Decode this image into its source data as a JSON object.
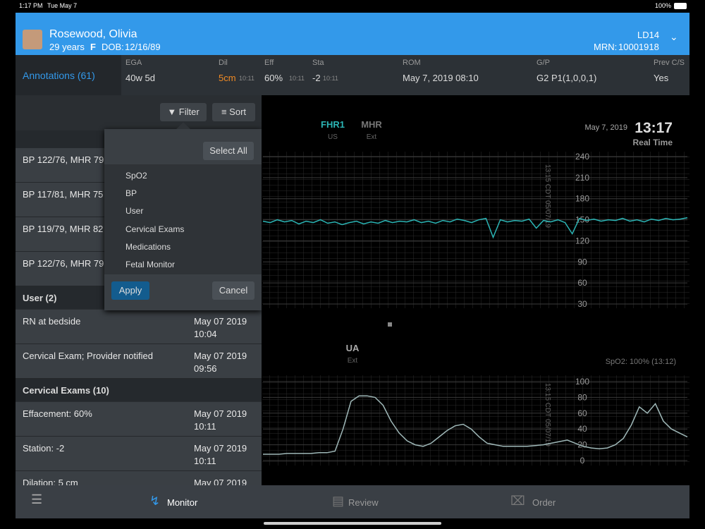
{
  "status": {
    "time": "1:17 PM",
    "date": "Tue May 7",
    "battery": "100%"
  },
  "patient": {
    "name": "Rosewood, Olivia",
    "age": "29 years",
    "sex": "F",
    "dob_label": "DOB:",
    "dob": "12/16/89",
    "room": "LD14",
    "mrn_label": "MRN:",
    "mrn": "10001918"
  },
  "annotations": "Annotations (61)",
  "summary": [
    {
      "label": "EGA",
      "value": "40w 5d"
    },
    {
      "label": "Dil",
      "value": "5cm",
      "time": "10:11"
    },
    {
      "label": "Eff",
      "value": "60%",
      "time": "10:11"
    },
    {
      "label": "Sta",
      "value": "-2",
      "time": "10:11"
    },
    {
      "label": "ROM",
      "value": "May 7, 2019 08:10"
    },
    {
      "label": "G/P",
      "value": "G2 P1(1,0,0,1)"
    },
    {
      "label": "Prev C/S",
      "value": "Yes"
    }
  ],
  "toolbar": {
    "filter": "Filter",
    "sort": "Sort"
  },
  "list": [
    {
      "text": "BP 122/76, MHR 79"
    },
    {
      "text": "BP 117/81, MHR 75"
    },
    {
      "text": "BP 119/79, MHR 82"
    },
    {
      "text": "BP 122/76, MHR 79"
    },
    {
      "header": "User (2)"
    },
    {
      "text": "RN at bedside",
      "date": "May 07 2019",
      "time": "10:04"
    },
    {
      "text": "Cervical Exam; Provider notified",
      "date": "May 07 2019",
      "time": "09:56"
    },
    {
      "header": "Cervical Exams (10)"
    },
    {
      "text": "Effacement: 60%",
      "date": "May 07 2019",
      "time": "10:11"
    },
    {
      "text": "Station: -2",
      "date": "May 07 2019",
      "time": "10:11"
    },
    {
      "text": "Dilation: 5 cm",
      "date": "May 07 2019"
    }
  ],
  "filter": {
    "select_all": "Select All",
    "options": [
      "SpO2",
      "BP",
      "User",
      "Cervical Exams",
      "Medications",
      "Fetal Monitor"
    ],
    "apply": "Apply",
    "cancel": "Cancel"
  },
  "monitor": {
    "fhr1": "FHR1",
    "fhr1_sub": "US",
    "mhr": "MHR",
    "mhr_sub": "Ext",
    "date": "May 7, 2019",
    "time": "13:17",
    "mode": "Real Time",
    "ua": "UA",
    "ua_sub": "Ext",
    "spo2": "SpO2: 100% (13:12)",
    "stamp": "13:15 CDT 05/07/19"
  },
  "fhr_chart": {
    "ylim": [
      30,
      240
    ],
    "yticks": [
      240,
      210,
      180,
      150,
      120,
      90,
      60,
      30
    ],
    "color": "#2bb5b5",
    "values": [
      148,
      146,
      150,
      147,
      149,
      144,
      148,
      146,
      150,
      145,
      147,
      143,
      146,
      148,
      144,
      147,
      145,
      149,
      146,
      148,
      147,
      150,
      146,
      148,
      145,
      149,
      147,
      151,
      149,
      146,
      150,
      152,
      125,
      150,
      147,
      149,
      148,
      151,
      138,
      149,
      147,
      150,
      146,
      130,
      152,
      149,
      151,
      148,
      150,
      149,
      152,
      148,
      150,
      147,
      151,
      149,
      152,
      150,
      151,
      153
    ]
  },
  "ua_chart": {
    "ylim": [
      0,
      100
    ],
    "yticks": [
      100,
      80,
      60,
      40,
      20,
      0
    ],
    "color": "#9fb8b8",
    "values": [
      8,
      8,
      8,
      9,
      9,
      9,
      9,
      10,
      10,
      12,
      40,
      75,
      82,
      82,
      80,
      70,
      50,
      35,
      25,
      20,
      18,
      22,
      30,
      38,
      44,
      46,
      40,
      30,
      22,
      20,
      18,
      18,
      18,
      18,
      19,
      20,
      22,
      24,
      26,
      22,
      18,
      16,
      15,
      16,
      20,
      28,
      45,
      68,
      60,
      72,
      50,
      40,
      35,
      30
    ]
  },
  "nav": {
    "monitor": "Monitor",
    "review": "Review",
    "order": "Order"
  }
}
